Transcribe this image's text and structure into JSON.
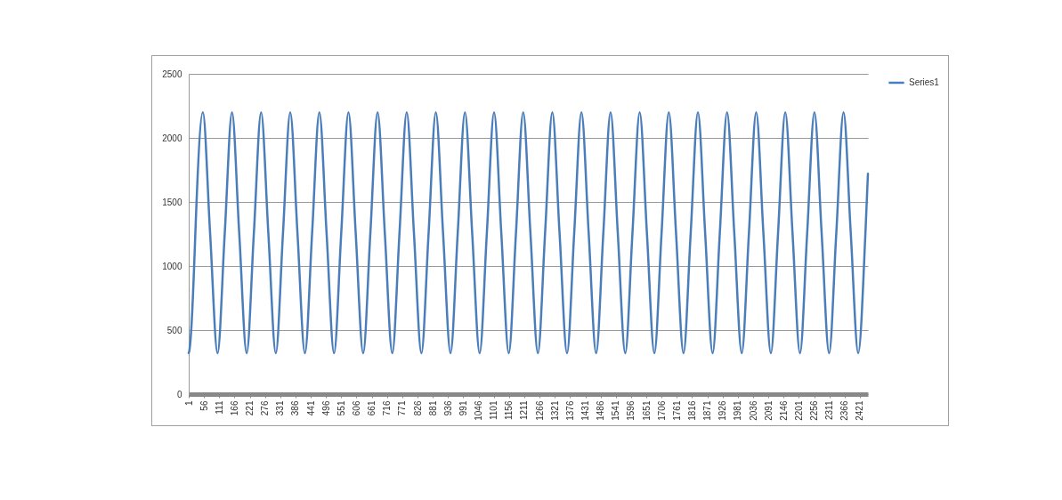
{
  "chart_data": {
    "type": "line",
    "x": [
      1,
      2,
      3,
      4,
      5,
      6,
      7,
      8,
      9,
      10,
      11,
      12,
      13,
      14,
      15,
      16,
      17,
      18,
      19,
      20,
      21,
      22,
      23,
      24,
      25,
      26,
      52,
      78,
      105,
      131,
      157,
      183,
      210,
      236,
      262,
      288,
      315,
      341,
      367,
      393,
      420,
      446,
      472,
      498,
      525,
      551,
      577,
      603,
      630,
      656,
      682,
      708,
      735,
      761,
      787,
      813,
      840,
      866,
      892,
      918,
      945,
      971,
      997,
      1023,
      1050,
      1076,
      1102,
      1128,
      1155,
      1181,
      1207,
      1233,
      1260,
      1286,
      1312,
      1338,
      1365,
      1391,
      1417,
      1443,
      1470,
      1496,
      1522,
      1548,
      1575,
      1601,
      1627,
      1653,
      1680,
      1706,
      1732,
      1758,
      1785,
      1811,
      1837,
      1863,
      1890,
      1916,
      1942,
      1968,
      1995,
      2021,
      2047,
      2073,
      2100,
      2126,
      2152,
      2178,
      2205,
      2231,
      2257,
      2283,
      2310,
      2336,
      2362,
      2388,
      2415,
      2441,
      2450
    ],
    "series": [
      {
        "name": "Series1",
        "color": "#4a7ebb",
        "values": [
          321,
          327,
          336,
          350,
          367,
          386,
          410,
          437,
          467,
          500,
          537,
          576,
          617,
          662,
          709,
          757,
          808,
          861,
          915,
          970,
          1027,
          1084,
          1142,
          1202,
          1261,
          1319,
          2200,
          1260,
          320,
          1260,
          2200,
          1260,
          320,
          1260,
          2200,
          1260,
          320,
          1260,
          2200,
          1260,
          320,
          1260,
          2200,
          1260,
          320,
          1260,
          2200,
          1260,
          320,
          1260,
          2200,
          1260,
          320,
          1260,
          2200,
          1260,
          320,
          1260,
          2200,
          1260,
          320,
          1260,
          2200,
          1260,
          320,
          1260,
          2200,
          1260,
          320,
          1260,
          2200,
          1260,
          320,
          1260,
          2200,
          1260,
          320,
          1260,
          2200,
          1260,
          320,
          1260,
          2200,
          1260,
          320,
          1260,
          2200,
          1260,
          320,
          1260,
          2200,
          1260,
          320,
          1260,
          2200,
          1260,
          320,
          1260,
          2200,
          1260,
          320,
          1260,
          2200,
          1260,
          320,
          1260,
          2200,
          1260,
          320,
          1260,
          2200,
          1260,
          320,
          1260,
          2200,
          1260,
          320,
          1260,
          1720
        ]
      }
    ],
    "xlim": [
      1,
      2450
    ],
    "xticks": [
      1,
      56,
      111,
      166,
      221,
      276,
      331,
      386,
      441,
      496,
      551,
      606,
      661,
      716,
      771,
      826,
      881,
      936,
      991,
      1046,
      1101,
      1156,
      1211,
      1266,
      1321,
      1376,
      1431,
      1486,
      1541,
      1596,
      1651,
      1706,
      1761,
      1816,
      1871,
      1926,
      1981,
      2036,
      2091,
      2146,
      2201,
      2256,
      2311,
      2366,
      2421
    ],
    "ylim": [
      0,
      2500
    ],
    "yticks": [
      0,
      500,
      1000,
      1500,
      2000,
      2500
    ],
    "grid": "y",
    "legend": "right"
  }
}
